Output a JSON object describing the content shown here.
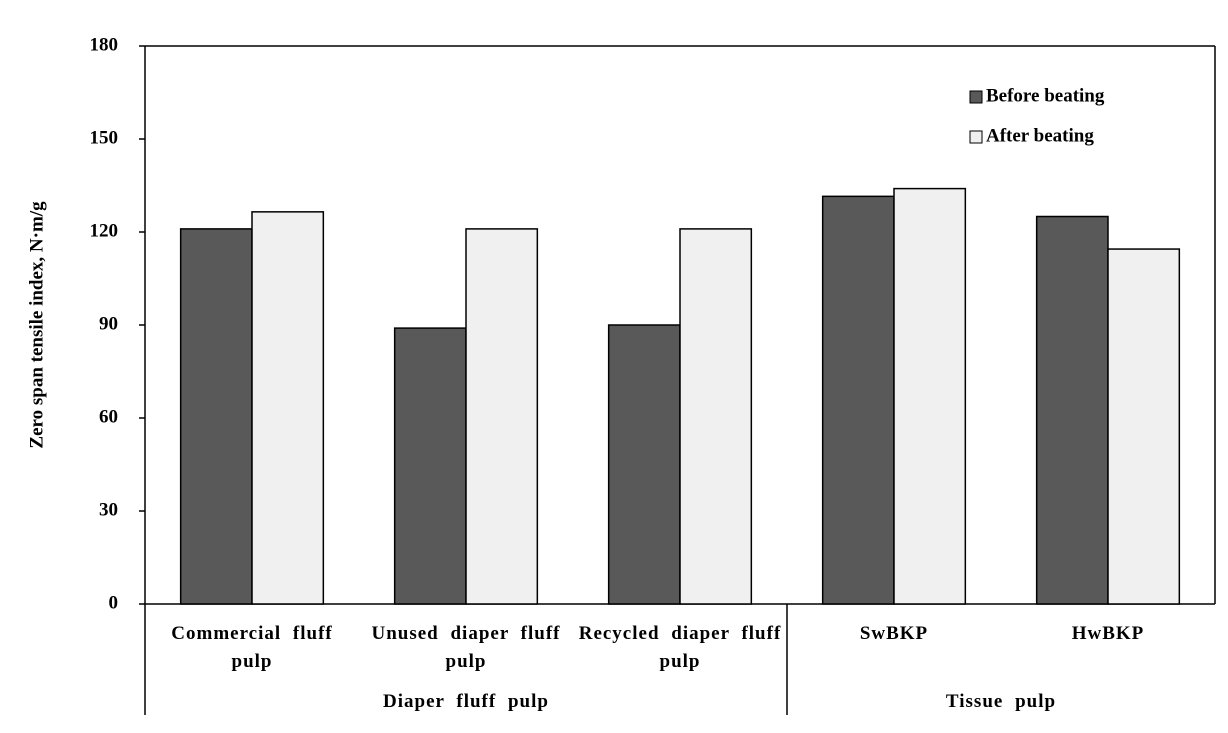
{
  "chart_data": {
    "type": "bar",
    "y_label": "Zero span tensile index, N·m/g",
    "groups": [
      {
        "name": "Diaper fluff pulp",
        "categories": [
          "Commercial fluff pulp",
          "Unused diaper fluff pulp",
          "Recycled diaper fluff pulp"
        ]
      },
      {
        "name": "Tissue pulp",
        "categories": [
          "SwBKP",
          "HwBKP"
        ]
      }
    ],
    "series": [
      {
        "name": "Before beating",
        "color": "#595959",
        "values": [
          121,
          89,
          90,
          131.5,
          125
        ]
      },
      {
        "name": "After beating",
        "color": "#f0f0f0",
        "values": [
          126.5,
          121,
          121,
          134,
          114.5
        ]
      }
    ],
    "ylim": [
      0,
      180
    ],
    "yticks": [
      0,
      30,
      60,
      90,
      120,
      150,
      180
    ],
    "legend": "upper right"
  }
}
